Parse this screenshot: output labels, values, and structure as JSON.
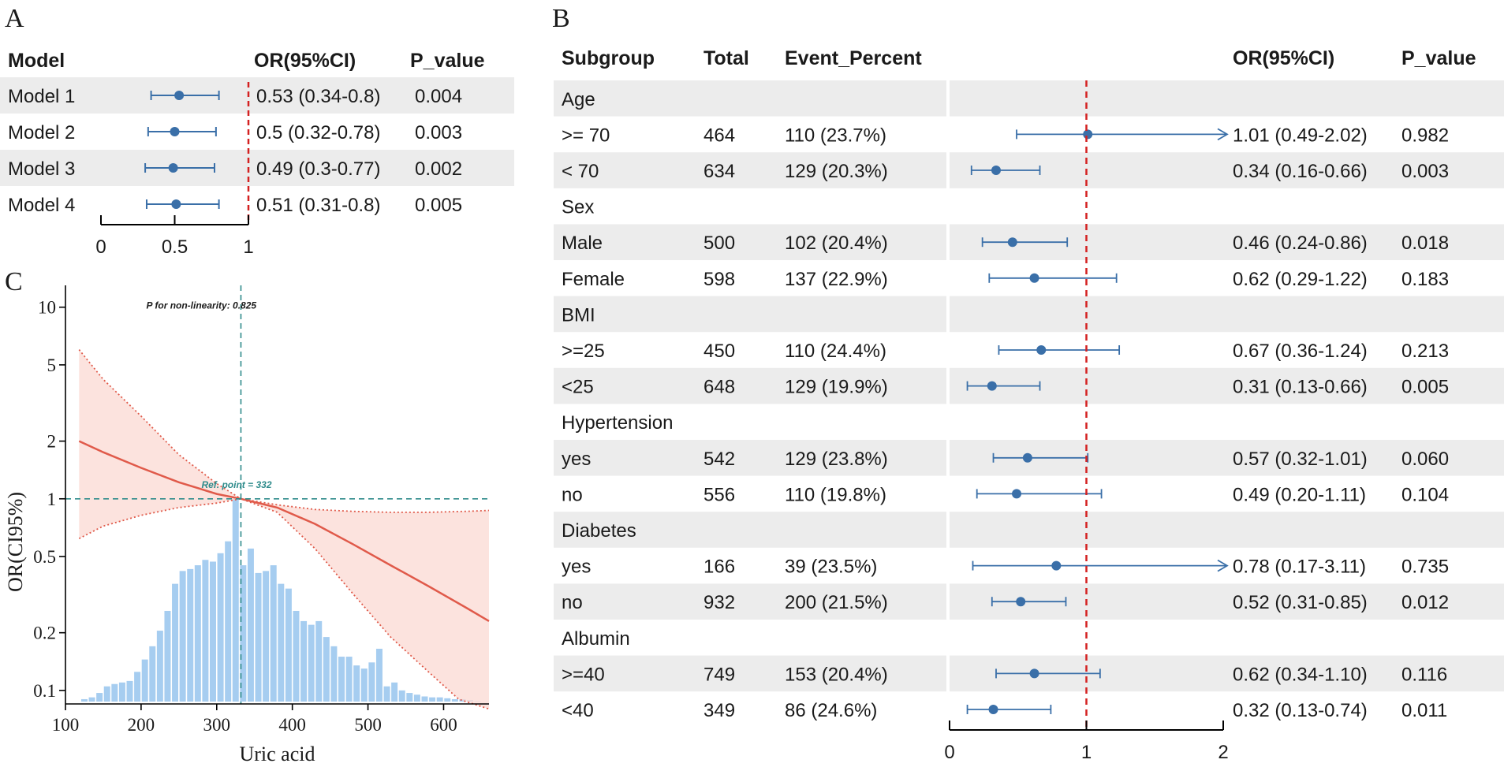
{
  "colors": {
    "row_shade": "#ececec",
    "ci_line": "#3a6fa8",
    "point": "#3a6fa8",
    "ref_line": "#d42020",
    "curve": "#e05a4a",
    "band_fill": "#fbd9d3",
    "hist": "#a6cdf0",
    "teal": "#2e8b8b",
    "text": "#1a1a1a"
  },
  "panel_labels": {
    "a": "A",
    "b": "B",
    "c": "C"
  },
  "chart_data": [
    {
      "id": "A",
      "type": "forest",
      "headers": {
        "model": "Model",
        "or": "OR(95%CI)",
        "p": "P_value"
      },
      "reference": 1,
      "xlim": [
        0,
        1
      ],
      "ticks": [
        "0",
        "0.5",
        "1"
      ],
      "tick_values": [
        0,
        0.5,
        1
      ],
      "rows": [
        {
          "label": "Model 1",
          "or": 0.53,
          "lo": 0.34,
          "hi": 0.8,
          "or_text": "0.53 (0.34-0.8)",
          "p": "0.004",
          "shaded": true
        },
        {
          "label": "Model 2",
          "or": 0.5,
          "lo": 0.32,
          "hi": 0.78,
          "or_text": "0.5 (0.32-0.78)",
          "p": "0.003",
          "shaded": false
        },
        {
          "label": "Model 3",
          "or": 0.49,
          "lo": 0.3,
          "hi": 0.77,
          "or_text": "0.49 (0.3-0.77)",
          "p": "0.002",
          "shaded": true
        },
        {
          "label": "Model 4",
          "or": 0.51,
          "lo": 0.31,
          "hi": 0.8,
          "or_text": "0.51 (0.31-0.8)",
          "p": "0.005",
          "shaded": false
        }
      ]
    },
    {
      "id": "B",
      "type": "forest",
      "headers": {
        "subgroup": "Subgroup",
        "total": "Total",
        "event": "Event_Percent",
        "or": "OR(95%CI)",
        "p": "P_value"
      },
      "reference": 1,
      "xlim": [
        0,
        2
      ],
      "ticks": [
        "0",
        "1",
        "2"
      ],
      "tick_values": [
        0,
        1,
        2
      ],
      "rows": [
        {
          "label": "Age",
          "header": true,
          "shaded": true
        },
        {
          "label": ">= 70",
          "total": "464",
          "event": "110 (23.7%)",
          "or": 1.01,
          "lo": 0.49,
          "hi": 2.02,
          "arrow": true,
          "or_text": "1.01 (0.49-2.02)",
          "p": "0.982",
          "shaded": false
        },
        {
          "label": "< 70",
          "total": "634",
          "event": "129 (20.3%)",
          "or": 0.34,
          "lo": 0.16,
          "hi": 0.66,
          "or_text": "0.34 (0.16-0.66)",
          "p": "0.003",
          "shaded": true
        },
        {
          "label": "Sex",
          "header": true,
          "shaded": false
        },
        {
          "label": "Male",
          "total": "500",
          "event": "102 (20.4%)",
          "or": 0.46,
          "lo": 0.24,
          "hi": 0.86,
          "or_text": "0.46 (0.24-0.86)",
          "p": "0.018",
          "shaded": true
        },
        {
          "label": "Female",
          "total": "598",
          "event": "137 (22.9%)",
          "or": 0.62,
          "lo": 0.29,
          "hi": 1.22,
          "or_text": "0.62 (0.29-1.22)",
          "p": "0.183",
          "shaded": false
        },
        {
          "label": "BMI",
          "header": true,
          "shaded": true
        },
        {
          "label": ">=25",
          "total": "450",
          "event": "110 (24.4%)",
          "or": 0.67,
          "lo": 0.36,
          "hi": 1.24,
          "or_text": "0.67 (0.36-1.24)",
          "p": "0.213",
          "shaded": false
        },
        {
          "label": "<25",
          "total": "648",
          "event": "129 (19.9%)",
          "or": 0.31,
          "lo": 0.13,
          "hi": 0.66,
          "or_text": "0.31 (0.13-0.66)",
          "p": "0.005",
          "shaded": true
        },
        {
          "label": "Hypertension",
          "header": true,
          "shaded": false
        },
        {
          "label": "yes",
          "total": "542",
          "event": "129 (23.8%)",
          "or": 0.57,
          "lo": 0.32,
          "hi": 1.01,
          "or_text": "0.57 (0.32-1.01)",
          "p": "0.060",
          "shaded": true
        },
        {
          "label": "no",
          "total": "556",
          "event": "110 (19.8%)",
          "or": 0.49,
          "lo": 0.2,
          "hi": 1.11,
          "or_text": "0.49 (0.20-1.11)",
          "p": "0.104",
          "shaded": false
        },
        {
          "label": "Diabetes",
          "header": true,
          "shaded": true
        },
        {
          "label": "yes",
          "total": "166",
          "event": "39 (23.5%)",
          "or": 0.78,
          "lo": 0.17,
          "hi": 3.11,
          "arrow": true,
          "or_text": "0.78 (0.17-3.11)",
          "p": "0.735",
          "shaded": false
        },
        {
          "label": "no",
          "total": "932",
          "event": "200 (21.5%)",
          "or": 0.52,
          "lo": 0.31,
          "hi": 0.85,
          "or_text": "0.52 (0.31-0.85)",
          "p": "0.012",
          "shaded": true
        },
        {
          "label": "Albumin",
          "header": true,
          "shaded": false
        },
        {
          "label": ">=40",
          "total": "749",
          "event": "153 (20.4%)",
          "or": 0.62,
          "lo": 0.34,
          "hi": 1.1,
          "or_text": "0.62 (0.34-1.10)",
          "p": "0.116",
          "shaded": true
        },
        {
          "label": "<40",
          "total": "349",
          "event": "86 (24.6%)",
          "or": 0.32,
          "lo": 0.13,
          "hi": 0.74,
          "or_text": "0.32 (0.13-0.74)",
          "p": "0.011",
          "shaded": false
        }
      ]
    },
    {
      "id": "C",
      "type": "line",
      "subtype": "restricted cubic spline with histogram",
      "xlabel": "Uric acid",
      "ylabel": "OR(CI95%)",
      "yscale": "log",
      "xlim": [
        100,
        660
      ],
      "ylim": [
        0.085,
        13
      ],
      "x_ticks": [
        100,
        200,
        300,
        400,
        500,
        600
      ],
      "y_ticks": [
        0.1,
        0.2,
        0.5,
        1,
        2,
        5,
        10
      ],
      "y_tick_labels": [
        "0.1",
        "0.2",
        "0.5",
        "1",
        "2",
        "5",
        "10"
      ],
      "annotation": "P for non-linearity: 0.825",
      "ref_label": "Ref. point = 332",
      "ref_x": 332,
      "ref_y": 1,
      "curve": {
        "x": [
          118,
          150,
          200,
          250,
          300,
          332,
          380,
          430,
          480,
          530,
          580,
          630,
          660
        ],
        "or": [
          2.0,
          1.75,
          1.45,
          1.22,
          1.06,
          1.0,
          0.9,
          0.74,
          0.58,
          0.45,
          0.35,
          0.27,
          0.23
        ]
      },
      "upper": {
        "x": [
          118,
          150,
          200,
          250,
          300,
          332,
          380,
          430,
          480,
          530,
          580,
          630,
          660
        ],
        "or": [
          6.0,
          4.2,
          2.7,
          1.7,
          1.2,
          1.0,
          0.93,
          0.88,
          0.86,
          0.85,
          0.85,
          0.86,
          0.87
        ]
      },
      "lower": {
        "x": [
          118,
          150,
          200,
          250,
          300,
          332,
          380,
          430,
          480,
          530,
          580,
          620,
          660
        ],
        "or": [
          0.62,
          0.72,
          0.82,
          0.9,
          0.95,
          1.0,
          0.85,
          0.55,
          0.32,
          0.19,
          0.125,
          0.09,
          0.08
        ]
      },
      "histogram": {
        "bins": [
          125,
          135,
          145,
          155,
          165,
          175,
          185,
          195,
          205,
          215,
          225,
          235,
          245,
          255,
          265,
          275,
          285,
          295,
          305,
          315,
          325,
          335,
          345,
          355,
          365,
          375,
          385,
          395,
          405,
          415,
          425,
          435,
          445,
          455,
          465,
          475,
          485,
          495,
          505,
          515,
          525,
          535,
          545,
          555,
          565,
          575,
          585,
          595,
          605,
          615,
          625,
          635,
          645
        ],
        "heights": [
          0.09,
          0.092,
          0.097,
          0.105,
          0.108,
          0.11,
          0.112,
          0.125,
          0.145,
          0.17,
          0.205,
          0.26,
          0.36,
          0.42,
          0.43,
          0.45,
          0.48,
          0.47,
          0.52,
          0.6,
          1.0,
          0.45,
          0.55,
          0.41,
          0.42,
          0.45,
          0.36,
          0.34,
          0.26,
          0.23,
          0.22,
          0.23,
          0.19,
          0.17,
          0.15,
          0.15,
          0.135,
          0.13,
          0.14,
          0.165,
          0.105,
          0.11,
          0.1,
          0.097,
          0.095,
          0.093,
          0.092,
          0.092,
          0.091,
          0.09,
          0.09,
          0.089,
          0.088
        ]
      }
    }
  ]
}
